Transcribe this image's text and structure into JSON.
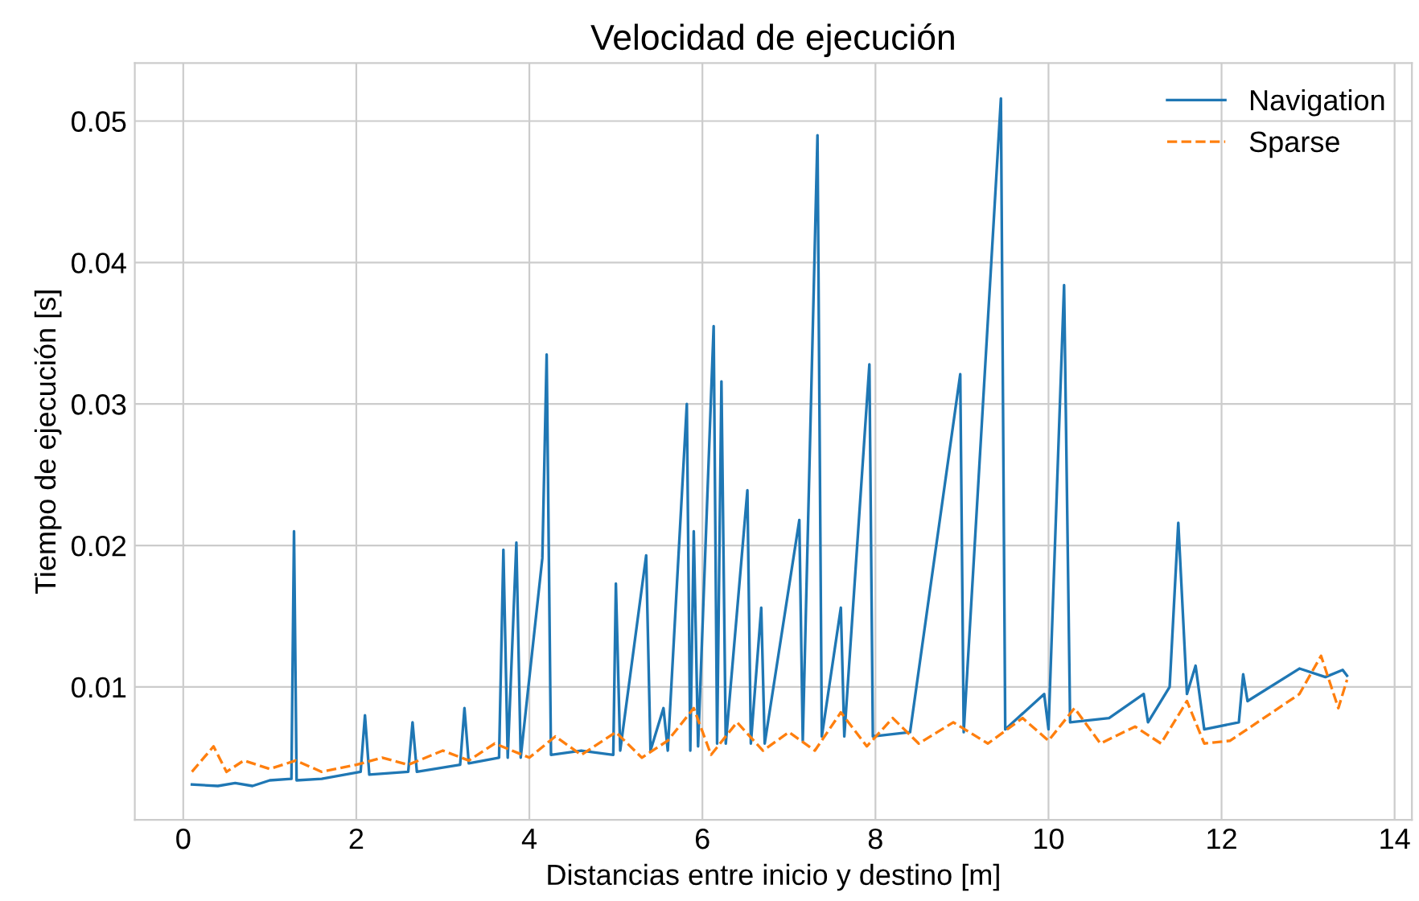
{
  "chart_data": {
    "type": "line",
    "title": "Velocidad de ejecución",
    "xlabel": "Distancias entre inicio y destino [m]",
    "ylabel": "Tiempo de ejecución [s]",
    "xlim": [
      -0.56,
      14.2
    ],
    "ylim": [
      0.0006,
      0.0541
    ],
    "xticks": [
      0,
      2,
      4,
      6,
      8,
      10,
      12,
      14
    ],
    "yticks": [
      0.01,
      0.02,
      0.03,
      0.04,
      0.05
    ],
    "grid": true,
    "legend": "top right",
    "series": [
      {
        "name": "Navigation",
        "color": "#1f77b4",
        "line_style": "solid",
        "x": [
          0.1,
          0.4,
          0.6,
          0.8,
          1.0,
          1.25,
          1.28,
          1.31,
          1.6,
          2.05,
          2.1,
          2.15,
          2.6,
          2.65,
          2.7,
          3.2,
          3.25,
          3.3,
          3.65,
          3.7,
          3.75,
          3.85,
          3.9,
          4.15,
          4.2,
          4.25,
          4.6,
          4.97,
          5.0,
          5.05,
          5.35,
          5.4,
          5.55,
          5.6,
          5.82,
          5.86,
          5.9,
          5.95,
          6.13,
          6.17,
          6.22,
          6.27,
          6.52,
          6.56,
          6.68,
          6.72,
          7.12,
          7.16,
          7.33,
          7.38,
          7.6,
          7.64,
          7.93,
          7.97,
          8.4,
          8.98,
          9.02,
          9.45,
          9.5,
          9.95,
          10.0,
          10.18,
          10.25,
          10.7,
          11.1,
          11.15,
          11.4,
          11.5,
          11.6,
          11.7,
          11.8,
          12.2,
          12.25,
          12.3,
          12.9,
          13.2,
          13.4,
          13.45
        ],
        "values": [
          0.0031,
          0.003,
          0.0032,
          0.003,
          0.0034,
          0.0035,
          0.021,
          0.0034,
          0.0035,
          0.004,
          0.008,
          0.0038,
          0.004,
          0.0075,
          0.004,
          0.0045,
          0.0085,
          0.0046,
          0.005,
          0.0197,
          0.005,
          0.0202,
          0.005,
          0.0191,
          0.0335,
          0.0052,
          0.0055,
          0.0052,
          0.0173,
          0.0055,
          0.0193,
          0.0055,
          0.0085,
          0.0055,
          0.03,
          0.0055,
          0.021,
          0.0058,
          0.0355,
          0.006,
          0.0316,
          0.006,
          0.0239,
          0.006,
          0.0156,
          0.006,
          0.0218,
          0.0062,
          0.049,
          0.0065,
          0.0156,
          0.0065,
          0.0328,
          0.0065,
          0.0068,
          0.0321,
          0.0068,
          0.0516,
          0.007,
          0.0095,
          0.007,
          0.0384,
          0.0075,
          0.0078,
          0.0095,
          0.0075,
          0.01,
          0.0216,
          0.0095,
          0.0115,
          0.007,
          0.0075,
          0.0109,
          0.009,
          0.0113,
          0.0107,
          0.0112,
          0.0108
        ]
      },
      {
        "name": "Sparse",
        "color": "#ff7f0e",
        "line_style": "dashed",
        "x": [
          0.1,
          0.35,
          0.5,
          0.7,
          1.0,
          1.3,
          1.6,
          2.0,
          2.3,
          2.6,
          3.0,
          3.3,
          3.6,
          4.0,
          4.3,
          4.6,
          5.0,
          5.3,
          5.6,
          5.9,
          6.1,
          6.4,
          6.7,
          7.0,
          7.3,
          7.6,
          7.9,
          8.2,
          8.5,
          8.9,
          9.3,
          9.7,
          10.0,
          10.3,
          10.6,
          11.0,
          11.3,
          11.6,
          11.8,
          12.1,
          12.9,
          13.15,
          13.35,
          13.45
        ],
        "values": [
          0.004,
          0.0058,
          0.004,
          0.0048,
          0.0042,
          0.0048,
          0.004,
          0.0045,
          0.005,
          0.0045,
          0.0055,
          0.0048,
          0.006,
          0.005,
          0.0065,
          0.0052,
          0.0068,
          0.005,
          0.0062,
          0.0085,
          0.0052,
          0.0075,
          0.0055,
          0.0068,
          0.0055,
          0.0082,
          0.0058,
          0.0078,
          0.006,
          0.0075,
          0.006,
          0.0078,
          0.0062,
          0.0085,
          0.006,
          0.0072,
          0.006,
          0.009,
          0.006,
          0.0062,
          0.0095,
          0.0122,
          0.0085,
          0.0105
        ]
      }
    ]
  }
}
